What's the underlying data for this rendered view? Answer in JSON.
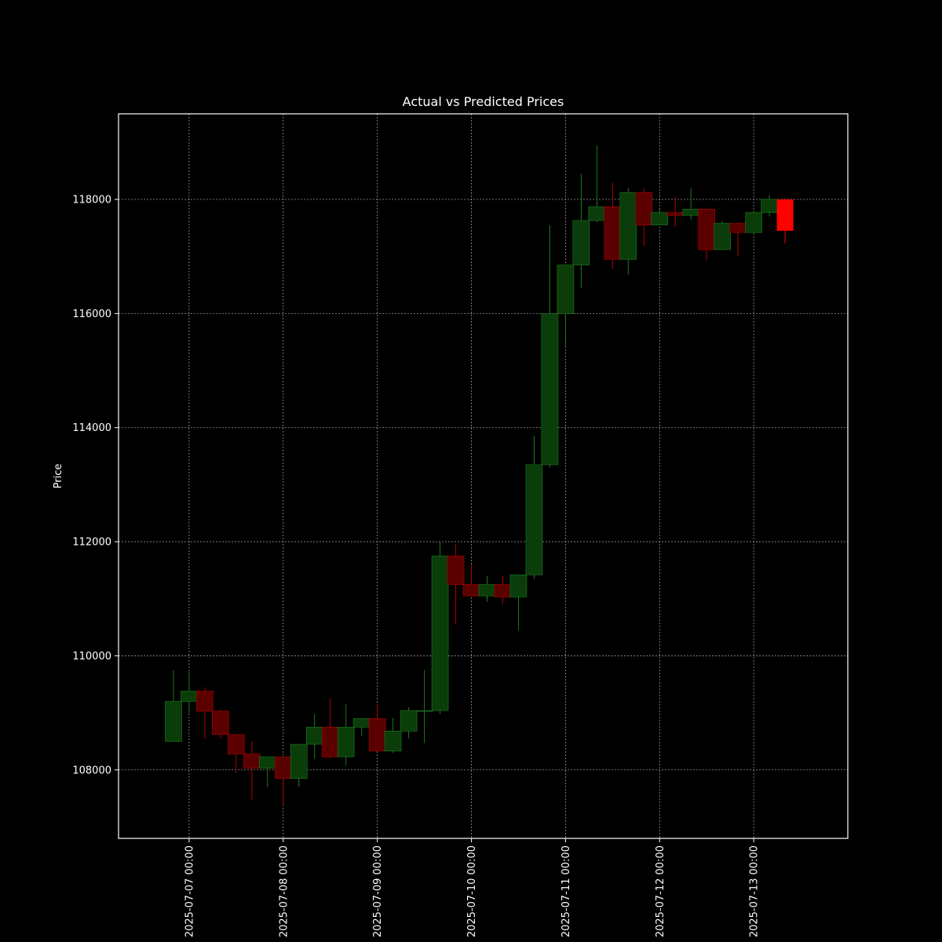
{
  "chart_data": {
    "type": "candlestick",
    "title": "Actual vs Predicted Prices",
    "xlabel": "",
    "ylabel": "Price",
    "ylim": [
      106800,
      119500
    ],
    "xlim": [
      "2025-07-06 06:00",
      "2025-07-14 00:00"
    ],
    "grid": true,
    "background": "#000000",
    "colors": {
      "up": "#0a3d0a",
      "up_edge": "#1e7a1e",
      "down": "#5a0000",
      "down_edge": "#b00000",
      "predicted": "#ff0000",
      "grid": "#bbbbbb",
      "axes": "#ffffff"
    },
    "y_ticks": [
      108000,
      110000,
      112000,
      114000,
      116000,
      118000
    ],
    "y_tick_labels": [
      "108000",
      "110000",
      "112000",
      "114000",
      "116000",
      "118000"
    ],
    "x_ticks": [
      "2025-07-07 00:00",
      "2025-07-08 00:00",
      "2025-07-09 00:00",
      "2025-07-10 00:00",
      "2025-07-11 00:00",
      "2025-07-12 00:00",
      "2025-07-13 00:00"
    ],
    "x_tick_labels": [
      "2025-07-07 00:00",
      "2025-07-08 00:00",
      "2025-07-09 00:00",
      "2025-07-10 00:00",
      "2025-07-11 00:00",
      "2025-07-12 00:00",
      "2025-07-13 00:00"
    ],
    "series": [
      {
        "kind": "actual",
        "candles": [
          {
            "t": "2025-07-06 20:00",
            "open": 108500,
            "high": 109750,
            "low": 108500,
            "close": 109200
          },
          {
            "t": "2025-07-07 00:00",
            "open": 109200,
            "high": 109750,
            "low": 109000,
            "close": 109380
          },
          {
            "t": "2025-07-07 04:00",
            "open": 109380,
            "high": 109450,
            "low": 108550,
            "close": 109030
          },
          {
            "t": "2025-07-07 08:00",
            "open": 109030,
            "high": 109050,
            "low": 108550,
            "close": 108620
          },
          {
            "t": "2025-07-07 12:00",
            "open": 108620,
            "high": 108620,
            "low": 107950,
            "close": 108280
          },
          {
            "t": "2025-07-07 16:00",
            "open": 108280,
            "high": 108500,
            "low": 107480,
            "close": 108030
          },
          {
            "t": "2025-07-07 20:00",
            "open": 108030,
            "high": 108230,
            "low": 107700,
            "close": 108230
          },
          {
            "t": "2025-07-08 00:00",
            "open": 108230,
            "high": 108230,
            "low": 107380,
            "close": 107850
          },
          {
            "t": "2025-07-08 04:00",
            "open": 107850,
            "high": 108450,
            "low": 107700,
            "close": 108450
          },
          {
            "t": "2025-07-08 08:00",
            "open": 108450,
            "high": 108980,
            "low": 108200,
            "close": 108750
          },
          {
            "t": "2025-07-08 12:00",
            "open": 108750,
            "high": 109250,
            "low": 108200,
            "close": 108230
          },
          {
            "t": "2025-07-08 16:00",
            "open": 108230,
            "high": 109150,
            "low": 108070,
            "close": 108750
          },
          {
            "t": "2025-07-08 20:00",
            "open": 108750,
            "high": 108900,
            "low": 108600,
            "close": 108900
          },
          {
            "t": "2025-07-09 00:00",
            "open": 108900,
            "high": 109150,
            "low": 108350,
            "close": 108330
          },
          {
            "t": "2025-07-09 04:00",
            "open": 108330,
            "high": 108910,
            "low": 108300,
            "close": 108680
          },
          {
            "t": "2025-07-09 08:00",
            "open": 108680,
            "high": 109100,
            "low": 108550,
            "close": 109040
          },
          {
            "t": "2025-07-09 12:00",
            "open": 109040,
            "high": 109750,
            "low": 108470,
            "close": 109040
          },
          {
            "t": "2025-07-09 16:00",
            "open": 109040,
            "high": 112000,
            "low": 108980,
            "close": 111750
          },
          {
            "t": "2025-07-09 20:00",
            "open": 111750,
            "high": 111950,
            "low": 110550,
            "close": 111250
          },
          {
            "t": "2025-07-10 00:00",
            "open": 111250,
            "high": 111600,
            "low": 111050,
            "close": 111050
          },
          {
            "t": "2025-07-10 04:00",
            "open": 111050,
            "high": 111400,
            "low": 110950,
            "close": 111250
          },
          {
            "t": "2025-07-10 08:00",
            "open": 111250,
            "high": 111400,
            "low": 110900,
            "close": 111030
          },
          {
            "t": "2025-07-10 12:00",
            "open": 111030,
            "high": 111400,
            "low": 110450,
            "close": 111420
          },
          {
            "t": "2025-07-10 16:00",
            "open": 111420,
            "high": 113850,
            "low": 111350,
            "close": 113350
          },
          {
            "t": "2025-07-10 20:00",
            "open": 113350,
            "high": 117550,
            "low": 113300,
            "close": 116000
          },
          {
            "t": "2025-07-11 00:00",
            "open": 116000,
            "high": 116850,
            "low": 115400,
            "close": 116850
          },
          {
            "t": "2025-07-11 04:00",
            "open": 116850,
            "high": 118450,
            "low": 116450,
            "close": 117630
          },
          {
            "t": "2025-07-11 08:00",
            "open": 117630,
            "high": 118950,
            "low": 117600,
            "close": 117870
          },
          {
            "t": "2025-07-11 12:00",
            "open": 117870,
            "high": 118300,
            "low": 116780,
            "close": 116950
          },
          {
            "t": "2025-07-11 16:00",
            "open": 116950,
            "high": 118200,
            "low": 116680,
            "close": 118120
          },
          {
            "t": "2025-07-11 20:00",
            "open": 118120,
            "high": 118200,
            "low": 117180,
            "close": 117550
          },
          {
            "t": "2025-07-12 00:00",
            "open": 117550,
            "high": 117830,
            "low": 117550,
            "close": 117770
          },
          {
            "t": "2025-07-12 04:00",
            "open": 117770,
            "high": 118050,
            "low": 117520,
            "close": 117720
          },
          {
            "t": "2025-07-12 08:00",
            "open": 117720,
            "high": 118200,
            "low": 117650,
            "close": 117830
          },
          {
            "t": "2025-07-12 12:00",
            "open": 117830,
            "high": 117830,
            "low": 116930,
            "close": 117120
          },
          {
            "t": "2025-07-12 16:00",
            "open": 117120,
            "high": 117620,
            "low": 117110,
            "close": 117580
          },
          {
            "t": "2025-07-12 20:00",
            "open": 117580,
            "high": 117600,
            "low": 117000,
            "close": 117420
          },
          {
            "t": "2025-07-13 00:00",
            "open": 117420,
            "high": 117800,
            "low": 117400,
            "close": 117770
          },
          {
            "t": "2025-07-13 04:00",
            "open": 117770,
            "high": 118080,
            "low": 117700,
            "close": 118000
          }
        ]
      },
      {
        "kind": "predicted",
        "candles": [
          {
            "t": "2025-07-13 08:00",
            "open": 118000,
            "high": 118000,
            "low": 117230,
            "close": 117450
          }
        ]
      }
    ]
  }
}
